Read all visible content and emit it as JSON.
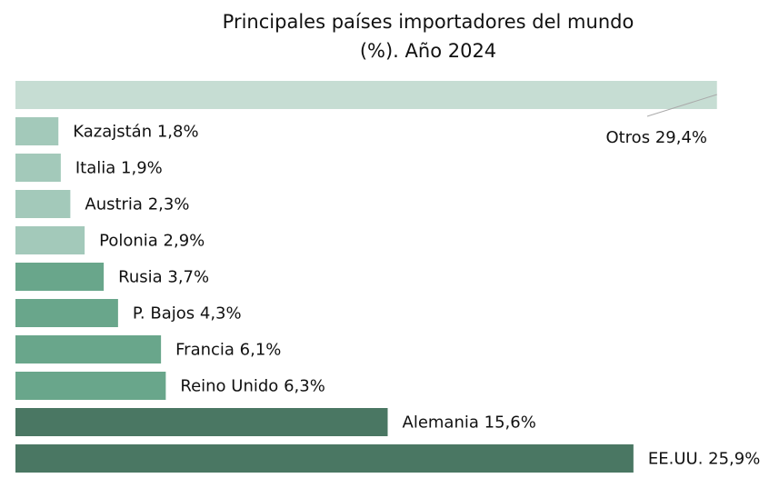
{
  "chart_data": {
    "type": "bar",
    "orientation": "horizontal",
    "title": [
      "Principales países importadores del mundo",
      "(%). Año 2024"
    ],
    "categories": [
      "Otros",
      "Kazajstán",
      "Italia",
      "Austria",
      "Polonia",
      "Rusia",
      "P. Bajos",
      "Francia",
      "Reino Unido",
      "Alemania",
      "EE.UU."
    ],
    "values": [
      29.4,
      1.8,
      1.9,
      2.3,
      2.9,
      3.7,
      4.3,
      6.1,
      6.3,
      15.6,
      25.9
    ],
    "value_labels": [
      "29,4%",
      "1,8%",
      "1,9%",
      "2,3%",
      "2,9%",
      "3,7%",
      "4,3%",
      "6,1%",
      "6,3%",
      "15,6%",
      "25,9%"
    ],
    "colors": [
      "#c6ddd3",
      "#a3c9ba",
      "#a3c9ba",
      "#a3c9ba",
      "#a3c9ba",
      "#69a68b",
      "#69a68b",
      "#69a68b",
      "#69a68b",
      "#4a7763",
      "#4a7763"
    ]
  }
}
